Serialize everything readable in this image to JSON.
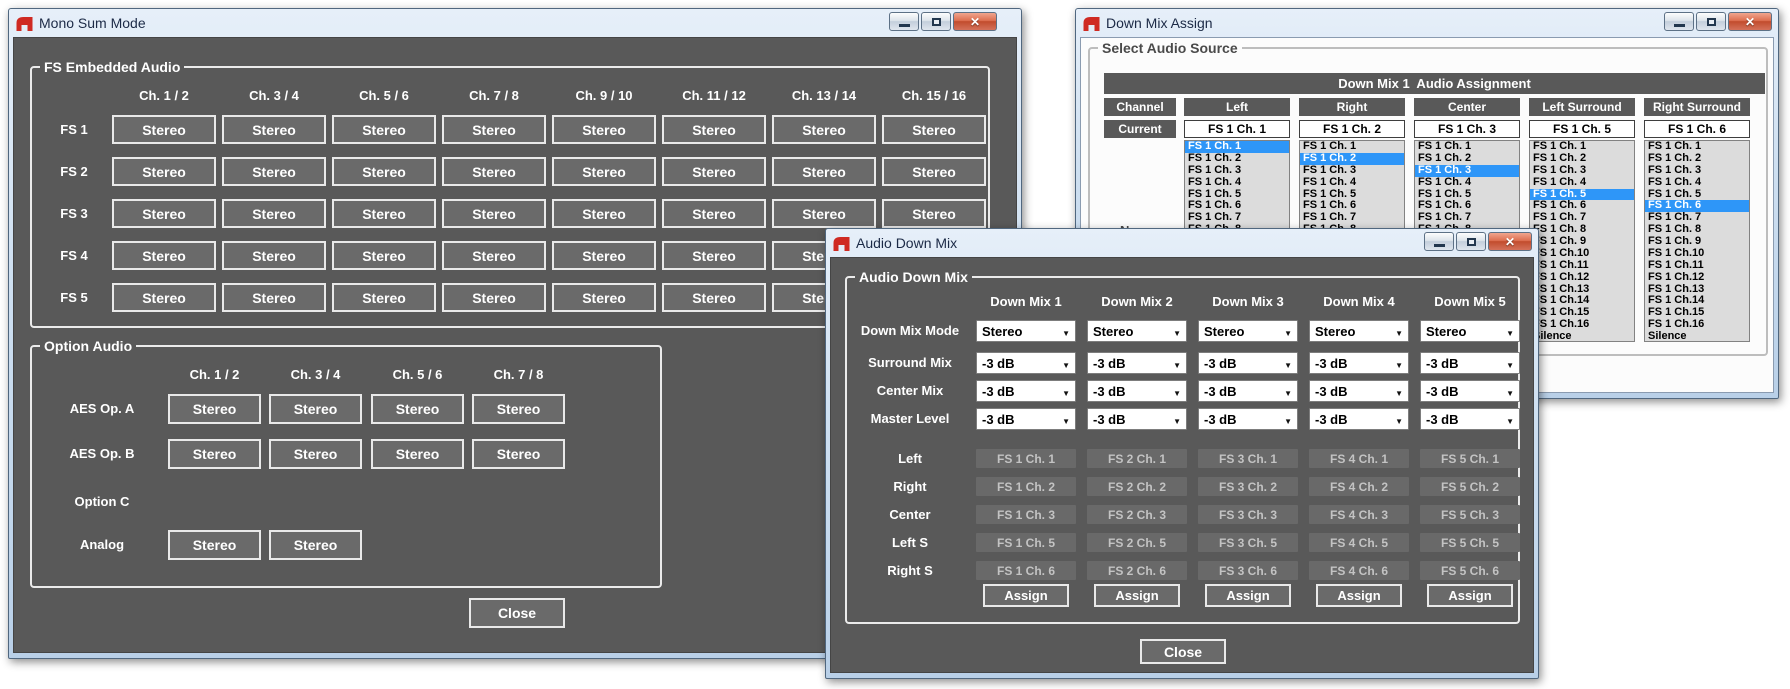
{
  "colors": {
    "panel_gray": "#595959",
    "selection_blue": "#2e96f8",
    "titlebar_blue": "#cfe0f1",
    "close_button_red": "#c24c2d",
    "list_background": "#dcdcdc"
  },
  "windows": {
    "mono_sum": {
      "title": "Mono Sum Mode",
      "embedded_group": "FS Embedded Audio",
      "embedded_columns": [
        "Ch. 1 / 2",
        "Ch. 3 / 4",
        "Ch. 5 / 6",
        "Ch. 7 / 8",
        "Ch. 9 / 10",
        "Ch. 11 / 12",
        "Ch. 13 / 14",
        "Ch. 15 / 16"
      ],
      "embedded_rows": [
        "FS 1",
        "FS 2",
        "FS 3",
        "FS 4",
        "FS 5"
      ],
      "button_label": "Stereo",
      "option_group": "Option Audio",
      "option_columns": [
        "Ch. 1 / 2",
        "Ch. 3 / 4",
        "Ch. 5 / 6",
        "Ch. 7 / 8"
      ],
      "option_rows": [
        {
          "label": "AES Op. A",
          "buttons": 4
        },
        {
          "label": "AES Op. B",
          "buttons": 4
        },
        {
          "label": "Option C",
          "buttons": 0
        },
        {
          "label": "Analog",
          "buttons": 2
        }
      ],
      "close_label": "Close"
    },
    "down_mix_assign": {
      "title": "Down Mix Assign",
      "group": "Select Audio Source",
      "header": "Down Mix 1  Audio Assignment",
      "channel_label": "Channel",
      "current_label": "Current",
      "new_label": "New",
      "columns": [
        "Left",
        "Right",
        "Center",
        "Left Surround",
        "Right Surround"
      ],
      "current_values": [
        "FS 1 Ch. 1",
        "FS 1 Ch. 2",
        "FS 1 Ch. 3",
        "FS 1 Ch. 5",
        "FS 1 Ch. 6"
      ],
      "list_items": [
        "FS 1 Ch. 1",
        "FS 1 Ch. 2",
        "FS 1 Ch. 3",
        "FS 1 Ch. 4",
        "FS 1 Ch. 5",
        "FS 1 Ch. 6",
        "FS 1 Ch. 7",
        "FS 1 Ch. 8",
        "FS 1 Ch. 9",
        "FS 1 Ch.10",
        "FS 1 Ch.11",
        "FS 1 Ch.12",
        "FS 1 Ch.13",
        "FS 1 Ch.14",
        "FS 1 Ch.15",
        "FS 1 Ch.16",
        "Silence"
      ],
      "selected_indices": [
        0,
        1,
        2,
        4,
        5
      ]
    },
    "audio_down_mix": {
      "title": "Audio Down Mix",
      "group": "Audio Down Mix",
      "columns": [
        "Down Mix 1",
        "Down Mix 2",
        "Down Mix 3",
        "Down Mix 4",
        "Down Mix 5"
      ],
      "dropdown_rows": [
        {
          "label": "Down Mix Mode",
          "values": [
            "Stereo",
            "Stereo",
            "Stereo",
            "Stereo",
            "Stereo"
          ]
        },
        {
          "label": "Surround Mix",
          "values": [
            "-3 dB",
            "-3 dB",
            "-3 dB",
            "-3 dB",
            "-3 dB"
          ]
        },
        {
          "label": "Center Mix",
          "values": [
            "-3 dB",
            "-3 dB",
            "-3 dB",
            "-3 dB",
            "-3 dB"
          ]
        },
        {
          "label": "Master Level",
          "values": [
            "-3 dB",
            "-3 dB",
            "-3 dB",
            "-3 dB",
            "-3 dB"
          ]
        }
      ],
      "static_rows": [
        {
          "label": "Left",
          "values": [
            "FS 1 Ch. 1",
            "FS 2 Ch. 1",
            "FS 3 Ch. 1",
            "FS 4 Ch. 1",
            "FS 5 Ch. 1"
          ]
        },
        {
          "label": "Right",
          "values": [
            "FS 1 Ch. 2",
            "FS 2 Ch. 2",
            "FS 3 Ch. 2",
            "FS 4 Ch. 2",
            "FS 5 Ch. 2"
          ]
        },
        {
          "label": "Center",
          "values": [
            "FS 1 Ch. 3",
            "FS 2 Ch. 3",
            "FS 3 Ch. 3",
            "FS 4 Ch. 3",
            "FS 5 Ch. 3"
          ]
        },
        {
          "label": "Left S",
          "values": [
            "FS 1 Ch. 5",
            "FS 2 Ch. 5",
            "FS 3 Ch. 5",
            "FS 4 Ch. 5",
            "FS 5 Ch. 5"
          ]
        },
        {
          "label": "Right S",
          "values": [
            "FS 1 Ch. 6",
            "FS 2 Ch. 6",
            "FS 3 Ch. 6",
            "FS 4 Ch. 6",
            "FS 5 Ch. 6"
          ]
        }
      ],
      "assign_label": "Assign",
      "close_label": "Close"
    }
  }
}
